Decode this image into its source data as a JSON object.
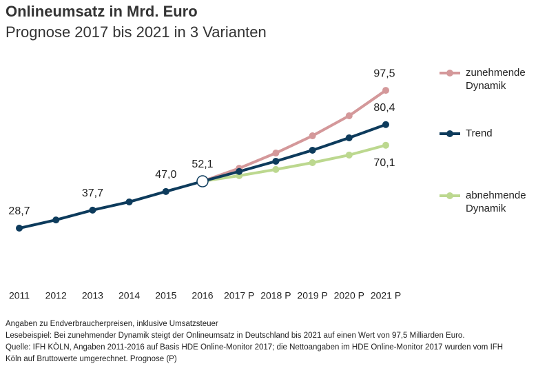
{
  "chart_data": {
    "type": "line",
    "title": "Onlineumsatz in Mrd. Euro",
    "subtitle": "Prognose 2017 bis 2021 in 3 Varianten",
    "categories": [
      "2011",
      "2012",
      "2013",
      "2014",
      "2015",
      "2016",
      "2017 P",
      "2018 P",
      "2019 P",
      "2020 P",
      "2021 P"
    ],
    "ylim": [
      20,
      100
    ],
    "series": [
      {
        "name": "zunehmende Dynamik",
        "color": "#d4989a",
        "values": [
          null,
          null,
          null,
          null,
          null,
          52.1,
          58.6,
          66.2,
          74.8,
          84.8,
          97.5
        ],
        "value_labels": [
          null,
          null,
          null,
          null,
          null,
          null,
          null,
          null,
          null,
          null,
          "97,5"
        ]
      },
      {
        "name": "Trend",
        "color": "#0d3b5c",
        "values": [
          28.7,
          32.8,
          37.7,
          41.8,
          47.0,
          52.1,
          57.0,
          62.1,
          67.6,
          73.8,
          80.4
        ],
        "value_labels": [
          "28,7",
          null,
          "37,7",
          null,
          "47,0",
          "52,1",
          null,
          null,
          null,
          null,
          "80,4"
        ]
      },
      {
        "name": "abnehmende Dynamik",
        "color": "#bcd88f",
        "values": [
          null,
          null,
          null,
          null,
          null,
          52.1,
          54.9,
          58.0,
          61.4,
          65.2,
          70.1
        ],
        "value_labels": [
          null,
          null,
          null,
          null,
          null,
          null,
          null,
          null,
          null,
          null,
          "70,1"
        ]
      }
    ],
    "notes": [
      "Angaben zu Endverbraucherpreisen, inklusive Umsatzsteuer",
      "Lesebeispiel: Bei zunehmender Dynamik steigt der Onlineumsatz in Deutschland bis 2021 auf einen Wert von 97,5 Milliarden Euro.",
      "Quelle: IFH KÖLN, Angaben 2011-2016 auf Basis HDE Online-Monitor 2017; die Nettoangaben im HDE Online-Monitor 2017 wurden vom IFH",
      "Köln auf Bruttowerte umgerechnet. Prognose (P)"
    ]
  }
}
